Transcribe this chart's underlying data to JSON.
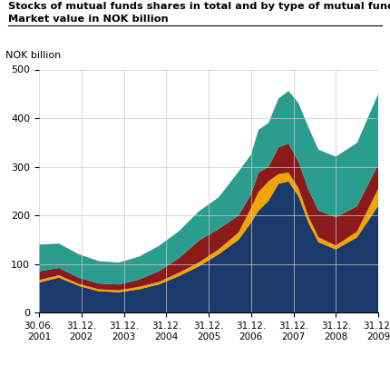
{
  "title_line1": "Stocks of mutual funds shares in total and by type of mutual fund.",
  "title_line2": "Market value in NOK billion",
  "ylabel": "NOK billion",
  "ylim": [
    0,
    500
  ],
  "yticks": [
    0,
    100,
    200,
    300,
    400,
    500
  ],
  "x_tick_positions": [
    0,
    1,
    2,
    3,
    4,
    5,
    6,
    7,
    8
  ],
  "x_labels": [
    "30.06.\n2001",
    "31.12.\n2002",
    "31.12.\n2003",
    "31.12.\n2004",
    "31.12.\n2005",
    "31.12.\n2006",
    "31.12.\n2007",
    "31.12.\n2008",
    "31.12.\n2009"
  ],
  "x_fine": [
    0,
    0.4706,
    0.9412,
    1.4118,
    1.8824,
    2.3529,
    2.8235,
    3.2941,
    3.7647,
    4.2353,
    4.7059,
    5.0,
    5.1765,
    5.4118,
    5.6471,
    5.8824,
    6.1176,
    6.3529,
    6.5882,
    7.0,
    7.5,
    8.0
  ],
  "equity": [
    62,
    72,
    55,
    44,
    42,
    48,
    58,
    75,
    95,
    120,
    150,
    185,
    210,
    230,
    265,
    270,
    240,
    185,
    145,
    130,
    155,
    220
  ],
  "hybrid": [
    5,
    5,
    4,
    4,
    4,
    5,
    5,
    7,
    8,
    10,
    15,
    30,
    38,
    40,
    20,
    18,
    16,
    13,
    10,
    8,
    12,
    35
  ],
  "bond": [
    18,
    15,
    13,
    12,
    12,
    15,
    22,
    30,
    45,
    42,
    35,
    28,
    40,
    30,
    55,
    60,
    55,
    55,
    55,
    58,
    52,
    50
  ],
  "money_market": [
    55,
    50,
    48,
    46,
    45,
    47,
    52,
    55,
    60,
    65,
    90,
    82,
    88,
    90,
    100,
    108,
    120,
    128,
    125,
    125,
    130,
    145
  ],
  "colors": {
    "equity": "#1b3a6b",
    "hybrid": "#f0a500",
    "bond": "#8b1a1a",
    "money_market": "#2a9d8f"
  },
  "background_color": "#ffffff",
  "grid_color": "#cccccc"
}
